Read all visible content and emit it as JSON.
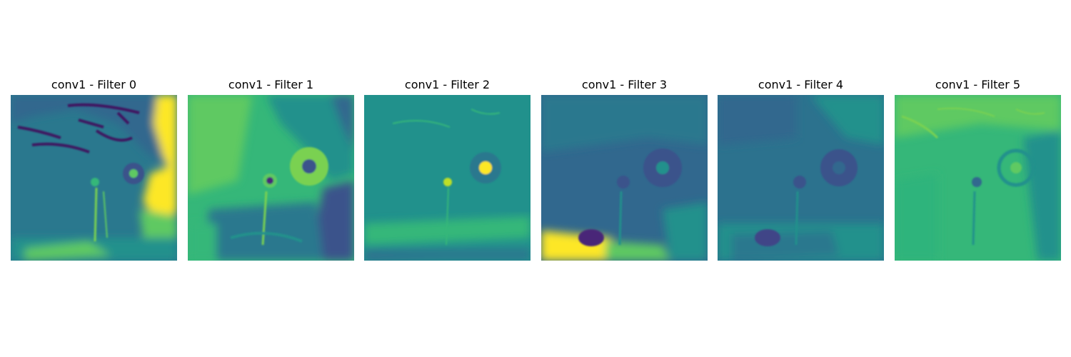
{
  "panels": [
    {
      "title": "conv1 - Filter 0"
    },
    {
      "title": "conv1 - Filter 1"
    },
    {
      "title": "conv1 - Filter 2"
    },
    {
      "title": "conv1 - Filter 3"
    },
    {
      "title": "conv1 - Filter 4"
    },
    {
      "title": "conv1 - Filter 5"
    }
  ],
  "colormap": {
    "dark": "#440154",
    "blue": "#31688e",
    "teal": "#21918c",
    "green": "#35b779",
    "yellow": "#fde725"
  }
}
